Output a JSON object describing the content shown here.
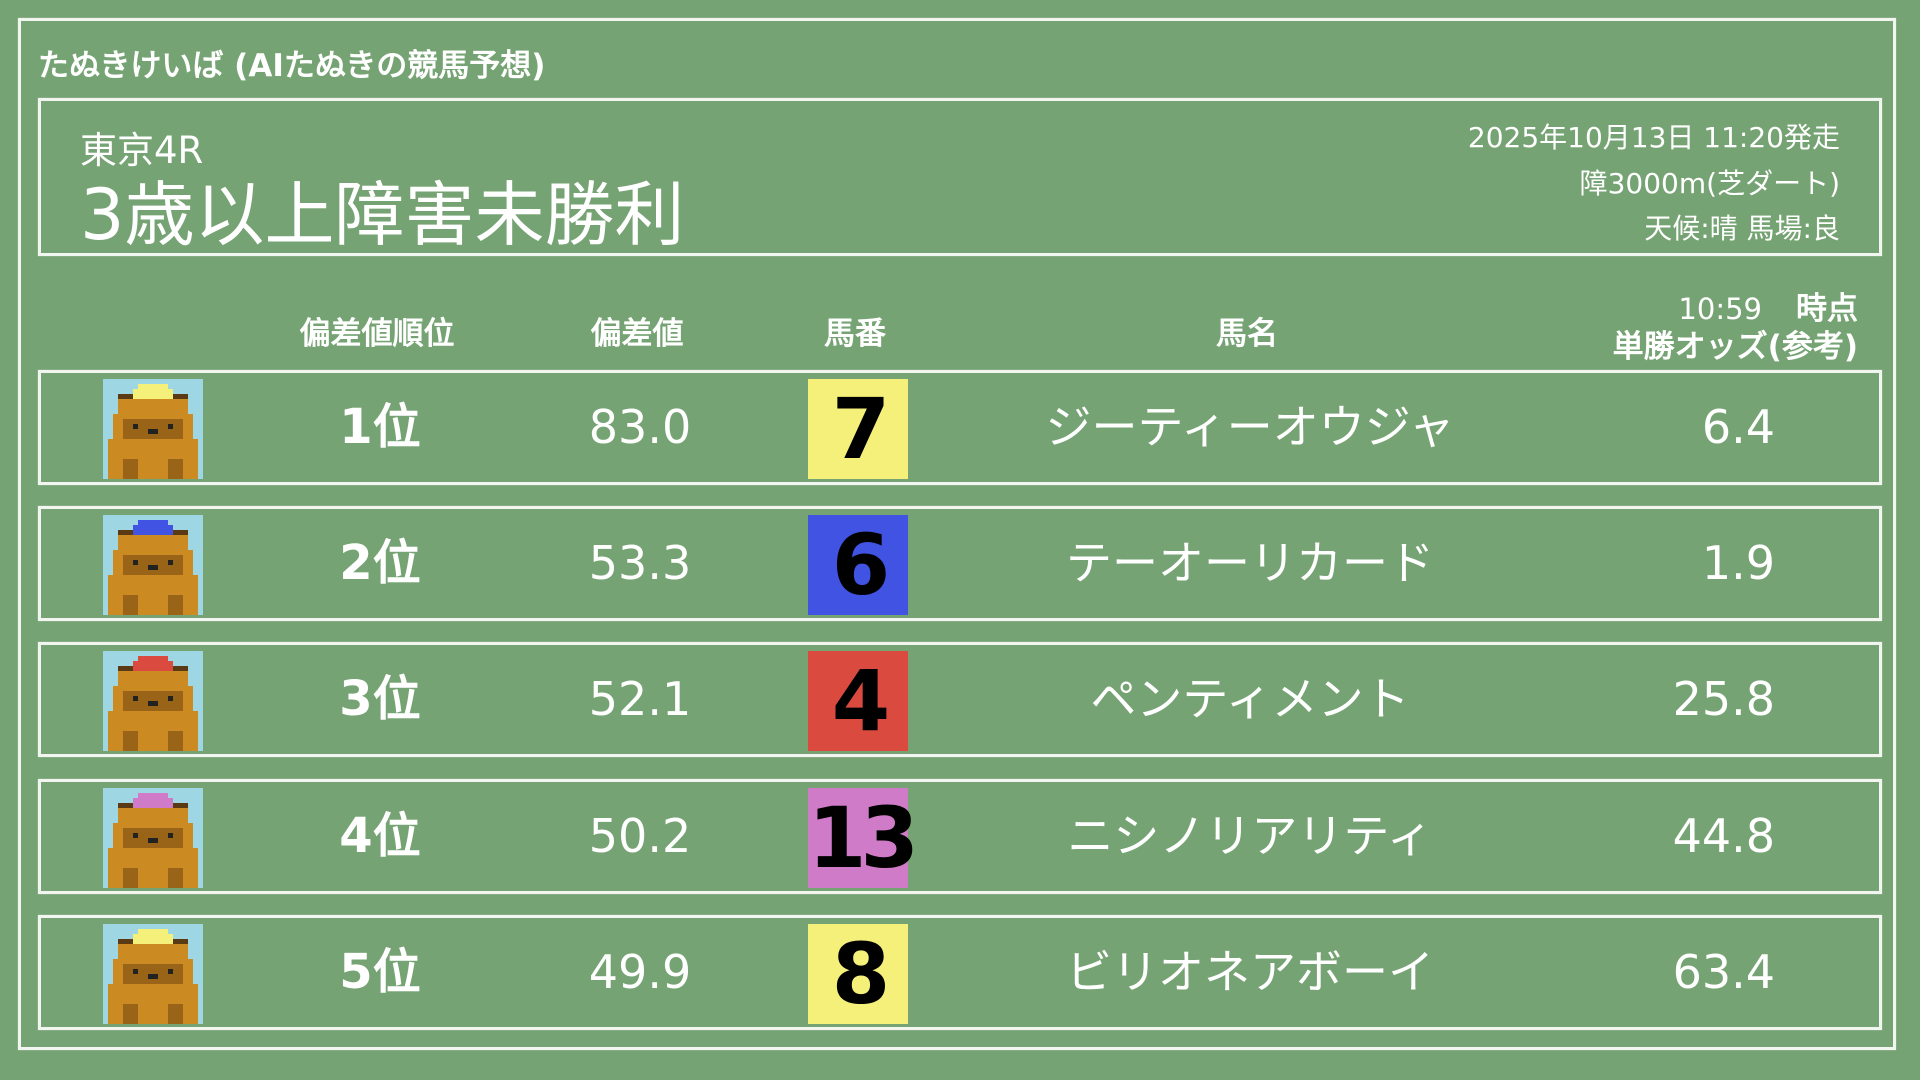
{
  "site_title": "たぬきけいば (AIたぬきの競馬予想)",
  "race": {
    "venue": "東京4R",
    "name": "3歳以上障害未勝利",
    "datetime": "2025年10月13日 11:20発走",
    "course": "障3000m(芝ダート)",
    "conditions": "天候:晴 馬場:良"
  },
  "columns": {
    "rank": "偏差値順位",
    "score": "偏差値",
    "number": "馬番",
    "name": "馬名",
    "odds_time": "10:59",
    "odds_suffix": "時点",
    "odds_label": "単勝オッズ(参考)"
  },
  "rows": [
    {
      "rank": "1位",
      "score": "83.0",
      "number": "7",
      "name": "ジーティーオウジャ",
      "odds": "6.4",
      "color": "#f5f07a",
      "avatar_icon": "tanuki-icon"
    },
    {
      "rank": "2位",
      "score": "53.3",
      "number": "6",
      "name": "テーオーリカード",
      "odds": "1.9",
      "color": "#4153e2",
      "avatar_icon": "tanuki-icon"
    },
    {
      "rank": "3位",
      "score": "52.1",
      "number": "4",
      "name": "ペンティメント",
      "odds": "25.8",
      "color": "#db4a3e",
      "avatar_icon": "tanuki-icon"
    },
    {
      "rank": "4位",
      "score": "50.2",
      "number": "13",
      "name": "ニシノリアリティ",
      "odds": "44.8",
      "color": "#d07bc8",
      "avatar_icon": "tanuki-icon"
    },
    {
      "rank": "5位",
      "score": "49.9",
      "number": "8",
      "name": "ビリオネアボーイ",
      "odds": "63.4",
      "color": "#f5f07a",
      "avatar_icon": "tanuki-icon"
    }
  ]
}
